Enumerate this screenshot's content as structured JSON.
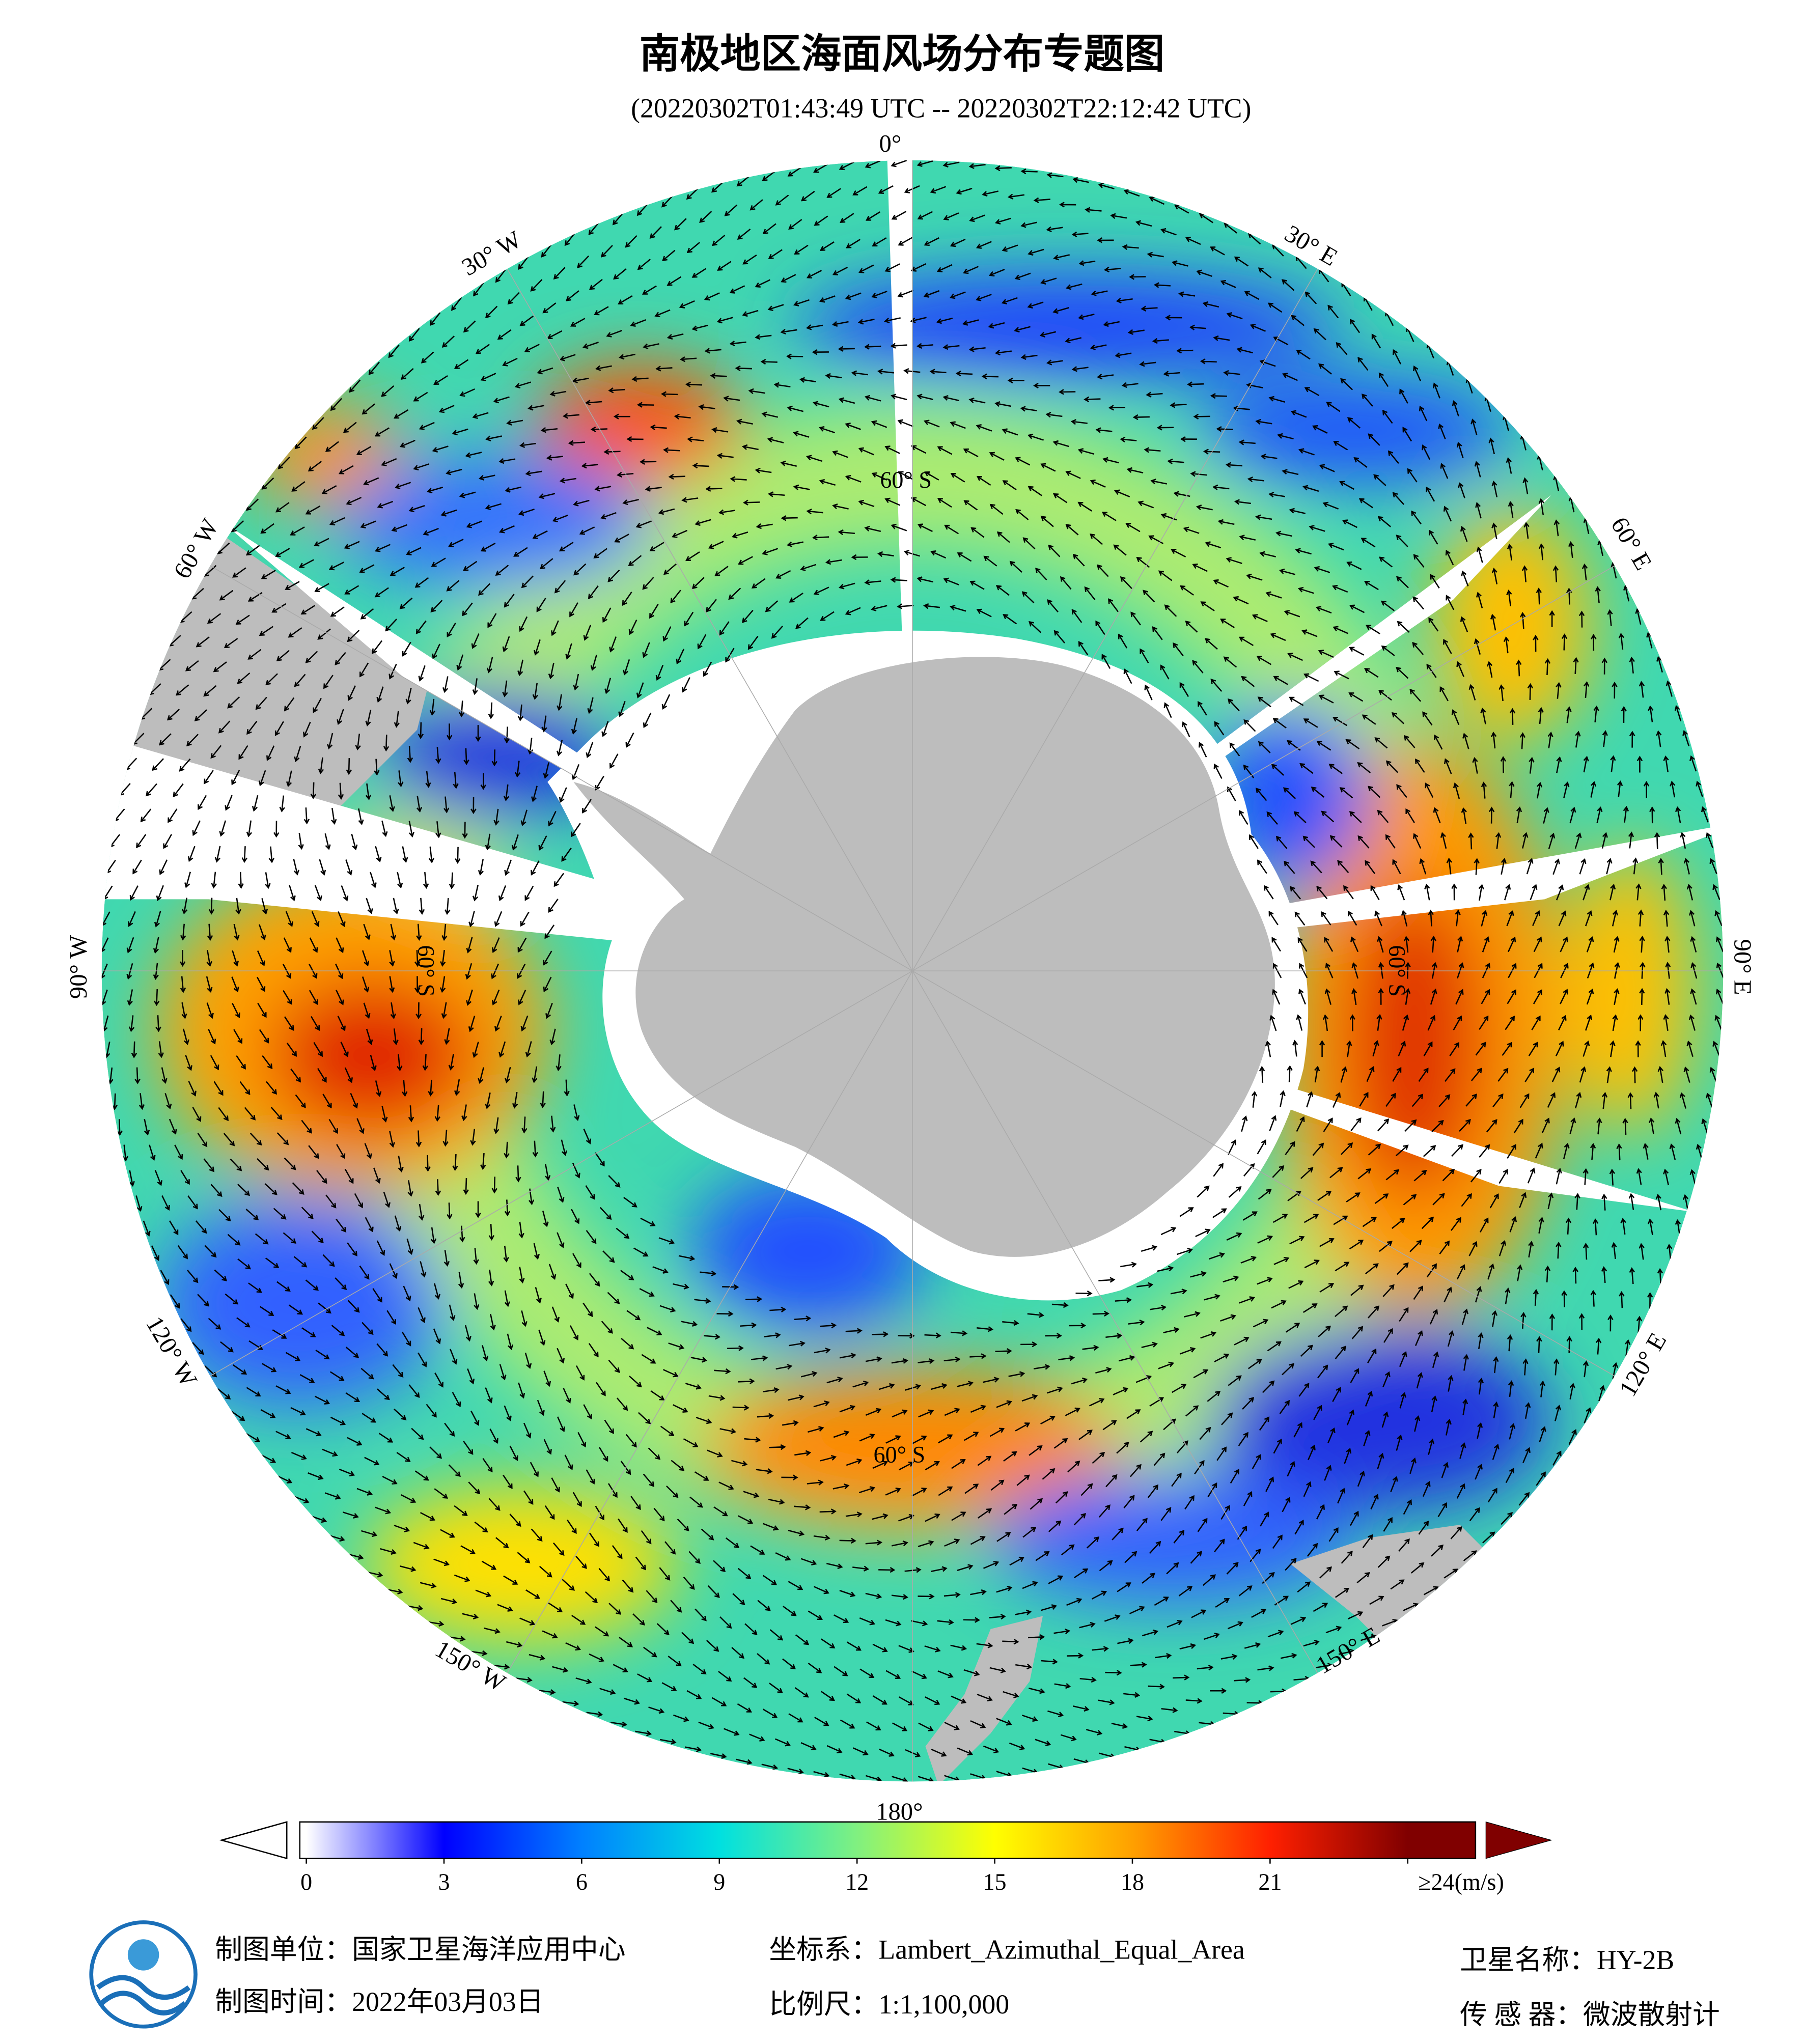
{
  "title": "南极地区海面风场分布专题图",
  "subtitle": "(20220302T01:43:49 UTC -- 20220302T22:12:42 UTC)",
  "map": {
    "lon_labels": [
      "0°",
      "30° E",
      "60° E",
      "90° E",
      "120° E",
      "150° E",
      "180°",
      "150° W",
      "120° W",
      "90° W",
      "60° W",
      "30° W"
    ],
    "lat_labels": [
      "60° S",
      "60° S",
      "60° S",
      "60° S"
    ]
  },
  "colorbar": {
    "range": [
      0,
      24
    ],
    "ticks": [
      0,
      3,
      6,
      9,
      12,
      15,
      18,
      21,
      {
        "value": 24,
        "label": "≥24(m/s)"
      }
    ],
    "colors": [
      "#ffffff",
      "#0000ff",
      "#0080ff",
      "#00e0e0",
      "#80f080",
      "#ffff00",
      "#ffa000",
      "#ff2000",
      "#800000"
    ]
  },
  "footer": {
    "unit": "制图单位：国家卫星海洋应用中心",
    "date": "制图时间：2022年03月03日",
    "crs": "坐标系：Lambert_Azimuthal_Equal_Area",
    "scale": "比例尺：1:1,100,000",
    "satellite": "卫星名称：HY-2B",
    "sensor": "传 感 器：微波散射计"
  }
}
